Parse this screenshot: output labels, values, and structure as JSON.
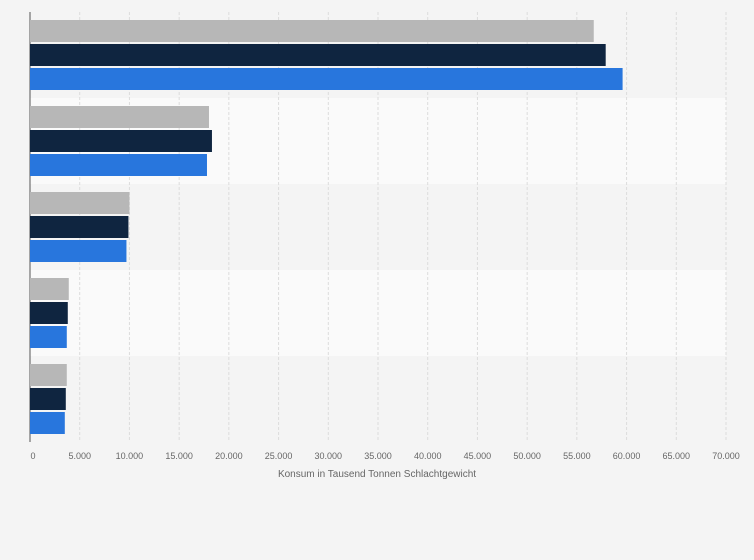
{
  "chart_data": {
    "type": "bar",
    "orientation": "horizontal",
    "categories": [
      "",
      "",
      "",
      "",
      ""
    ],
    "series": [
      {
        "color": "#b7b7b7",
        "values": [
          56700,
          18000,
          10000,
          3900,
          3700
        ]
      },
      {
        "color": "#0f2540",
        "values": [
          57900,
          18300,
          9900,
          3800,
          3600
        ]
      },
      {
        "color": "#2876dd",
        "values": [
          59600,
          17800,
          9700,
          3700,
          3500
        ]
      }
    ],
    "x_ticks": [
      "0",
      "5.000",
      "10.000",
      "15.000",
      "20.000",
      "25.000",
      "30.000",
      "35.000",
      "40.000",
      "45.000",
      "50.000",
      "55.000",
      "60.000",
      "65.000",
      "70.000"
    ],
    "xlim": [
      0,
      70000
    ],
    "xlabel": "Konsum in Tausend Tonnen Schlachtgewicht",
    "grid": true,
    "legend": "none"
  }
}
